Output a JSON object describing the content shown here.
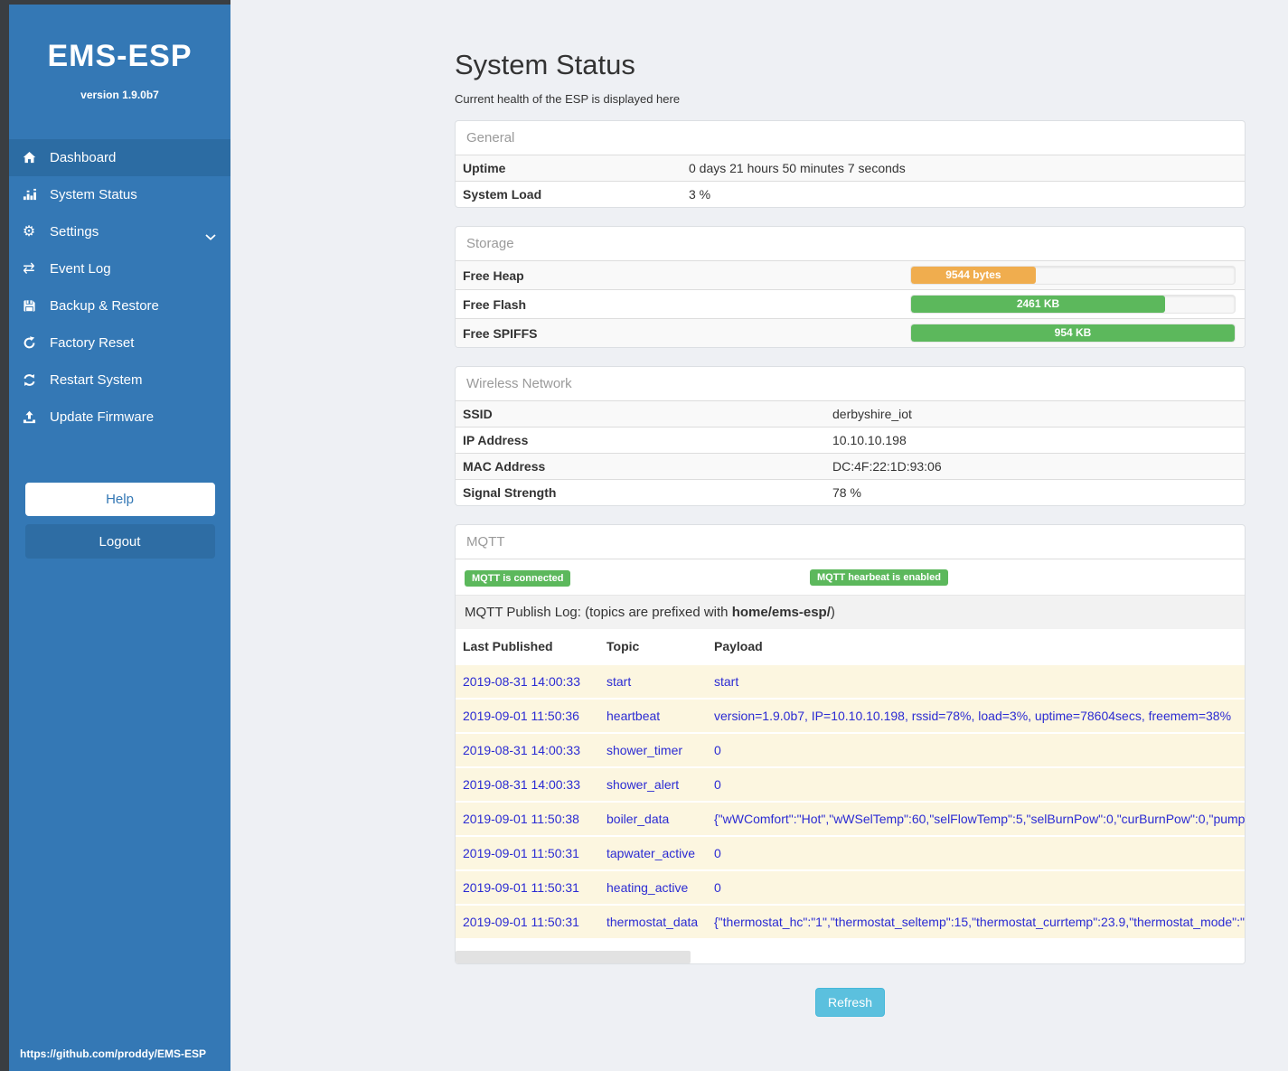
{
  "sidebar": {
    "title": "EMS-ESP",
    "version": "version 1.9.0b7",
    "items": [
      {
        "label": "Dashboard",
        "icon": "home-icon",
        "active": true
      },
      {
        "label": "System Status",
        "icon": "status-bars-icon"
      },
      {
        "label": "Settings",
        "icon": "gear-icon",
        "chevron": true
      },
      {
        "label": "Event Log",
        "icon": "exchange-icon"
      },
      {
        "label": "Backup & Restore",
        "icon": "floppy-icon"
      },
      {
        "label": "Factory Reset",
        "icon": "rotate-icon"
      },
      {
        "label": "Restart System",
        "icon": "refresh-icon"
      },
      {
        "label": "Update Firmware",
        "icon": "upload-icon"
      }
    ],
    "help_label": "Help",
    "logout_label": "Logout",
    "footer_link": "https://github.com/proddy/EMS-ESP"
  },
  "page": {
    "title": "System Status",
    "subtitle": "Current health of the ESP is displayed here",
    "refresh_label": "Refresh"
  },
  "general": {
    "title": "General",
    "rows": [
      [
        "Uptime",
        "0 days 21 hours 50 minutes 7 seconds"
      ],
      [
        "System Load",
        "3 %"
      ]
    ]
  },
  "storage": {
    "title": "Storage",
    "rows": [
      {
        "label": "Free Heap",
        "value": "9544 bytes",
        "pct": 38.5,
        "color": "#f0ad4e"
      },
      {
        "label": "Free Flash",
        "value": "2461 KB",
        "pct": 78.5,
        "color": "#5cb85c"
      },
      {
        "label": "Free SPIFFS",
        "value": "954 KB",
        "pct": 100,
        "color": "#5cb85c"
      }
    ]
  },
  "wireless": {
    "title": "Wireless Network",
    "rows": [
      [
        "SSID",
        "derbyshire_iot"
      ],
      [
        "IP Address",
        "10.10.10.198"
      ],
      [
        "MAC Address",
        "DC:4F:22:1D:93:06"
      ],
      [
        "Signal Strength",
        "78 %"
      ]
    ]
  },
  "mqtt": {
    "title": "MQTT",
    "badges": [
      "MQTT is connected",
      "MQTT hearbeat is enabled"
    ],
    "log_intro_prefix": "MQTT Publish Log: (topics are prefixed with ",
    "log_intro_bold": "home/ems-esp/",
    "log_intro_suffix": ")",
    "table": {
      "headers": [
        "Last Published",
        "Topic",
        "Payload"
      ],
      "rows": [
        [
          "2019-08-31 14:00:33",
          "start",
          "start"
        ],
        [
          "2019-09-01 11:50:36",
          "heartbeat",
          "version=1.9.0b7, IP=10.10.10.198, rssid=78%, load=3%, uptime=78604secs, freemem=38%"
        ],
        [
          "2019-08-31 14:00:33",
          "shower_timer",
          "0"
        ],
        [
          "2019-08-31 14:00:33",
          "shower_alert",
          "0"
        ],
        [
          "2019-09-01 11:50:38",
          "boiler_data",
          "{\"wWComfort\":\"Hot\",\"wWSelTemp\":60,\"selFlowTemp\":5,\"selBurnPow\":0,\"curBurnPow\":0,\"pump"
        ],
        [
          "2019-09-01 11:50:31",
          "tapwater_active",
          "0"
        ],
        [
          "2019-09-01 11:50:31",
          "heating_active",
          "0"
        ],
        [
          "2019-09-01 11:50:31",
          "thermostat_data",
          "{\"thermostat_hc\":\"1\",\"thermostat_seltemp\":15,\"thermostat_currtemp\":23.9,\"thermostat_mode\":\""
        ]
      ]
    }
  },
  "colors": {
    "sidebar": "#3478b5",
    "sidebar_active": "#2c6ca3",
    "badge_green": "#5cb85c",
    "bar_orange": "#f0ad4e",
    "bar_green": "#5cb85c",
    "refresh_blue": "#5bc0de",
    "log_row_bg": "#fcf6e0",
    "log_text_blue": "#2b2bd3"
  }
}
